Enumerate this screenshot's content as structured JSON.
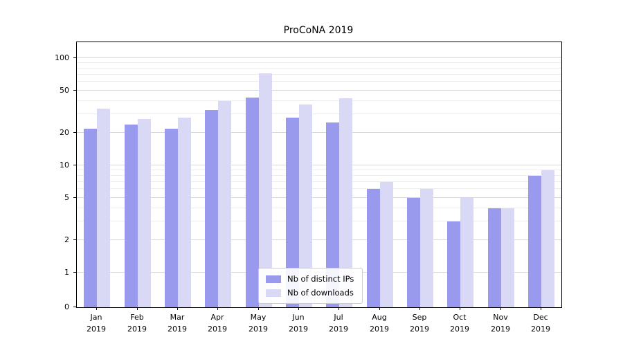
{
  "chart_data": {
    "type": "bar",
    "title": "ProCoNA 2019",
    "categories": [
      "Jan",
      "Feb",
      "Mar",
      "Apr",
      "May",
      "Jun",
      "Jul",
      "Aug",
      "Sep",
      "Oct",
      "Nov",
      "Dec"
    ],
    "category_year": "2019",
    "series": [
      {
        "name": "Nb of distinct IPs",
        "color": "#9999ed",
        "values": [
          22,
          24,
          22,
          33,
          43,
          28,
          25,
          6,
          5,
          3,
          4,
          8
        ]
      },
      {
        "name": "Nb of downloads",
        "color": "#d9d9f6",
        "values": [
          34,
          27,
          28,
          40,
          72,
          37,
          42,
          7,
          6,
          5,
          4,
          9
        ]
      }
    ],
    "yscale": "symlog",
    "yticks": [
      0,
      1,
      2,
      5,
      10,
      20,
      50,
      100
    ],
    "minor_yticks": [
      3,
      4,
      6,
      7,
      8,
      9,
      30,
      40,
      60,
      70,
      80,
      90
    ],
    "ylim": [
      0,
      130
    ],
    "grid": true,
    "legend_position": "lower center"
  }
}
